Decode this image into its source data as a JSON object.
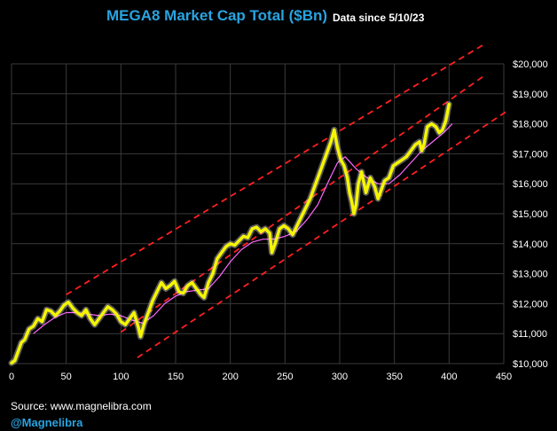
{
  "header": {
    "title": "MEGA8 Market Cap Total ($Bn)",
    "subtitle": "Data since 5/10/23"
  },
  "footer": {
    "source": "Source: www.magnelibra.com",
    "handle": "@Magnelibra"
  },
  "chart_data": {
    "type": "line",
    "xlim": [
      0,
      450
    ],
    "ylim": [
      10000,
      20000
    ],
    "x_ticks": [
      0,
      50,
      100,
      150,
      200,
      250,
      300,
      350,
      400,
      450
    ],
    "x_tick_labels": [
      "0",
      "50",
      "100",
      "150",
      "200",
      "250",
      "300",
      "350",
      "400",
      "450"
    ],
    "y_ticks": [
      10000,
      11000,
      12000,
      13000,
      14000,
      15000,
      16000,
      17000,
      18000,
      19000,
      20000
    ],
    "y_tick_labels": [
      "$10,000",
      "$11,000",
      "$12,000",
      "$13,000",
      "$14,000",
      "$15,000",
      "$16,000",
      "$17,000",
      "$18,000",
      "$19,000",
      "$20,000"
    ],
    "grid": true,
    "colors": {
      "market_cap": "#f5f500",
      "glow": "#ffffff",
      "moving_average": "#ff66ff",
      "channel": "#ff2020",
      "grid": "#3a3a3a"
    },
    "series": [
      {
        "key": "market_cap",
        "style": "thick-glow",
        "points": [
          [
            0,
            10020
          ],
          [
            3,
            10100
          ],
          [
            6,
            10400
          ],
          [
            9,
            10700
          ],
          [
            12,
            10800
          ],
          [
            16,
            11150
          ],
          [
            20,
            11250
          ],
          [
            24,
            11500
          ],
          [
            28,
            11400
          ],
          [
            32,
            11800
          ],
          [
            36,
            11750
          ],
          [
            40,
            11600
          ],
          [
            44,
            11750
          ],
          [
            48,
            11950
          ],
          [
            52,
            12050
          ],
          [
            56,
            11850
          ],
          [
            60,
            11700
          ],
          [
            64,
            11600
          ],
          [
            68,
            11800
          ],
          [
            72,
            11500
          ],
          [
            76,
            11300
          ],
          [
            80,
            11500
          ],
          [
            84,
            11700
          ],
          [
            88,
            11900
          ],
          [
            92,
            11800
          ],
          [
            96,
            11650
          ],
          [
            100,
            11400
          ],
          [
            104,
            11300
          ],
          [
            108,
            11500
          ],
          [
            112,
            11700
          ],
          [
            116,
            11200
          ],
          [
            118,
            10900
          ],
          [
            121,
            11300
          ],
          [
            125,
            11700
          ],
          [
            129,
            12100
          ],
          [
            133,
            12400
          ],
          [
            137,
            12700
          ],
          [
            141,
            12500
          ],
          [
            145,
            12600
          ],
          [
            149,
            12750
          ],
          [
            153,
            12400
          ],
          [
            157,
            12350
          ],
          [
            161,
            12600
          ],
          [
            165,
            12700
          ],
          [
            169,
            12500
          ],
          [
            173,
            12300
          ],
          [
            176,
            12200
          ],
          [
            180,
            12700
          ],
          [
            184,
            13000
          ],
          [
            188,
            13500
          ],
          [
            192,
            13700
          ],
          [
            196,
            13900
          ],
          [
            200,
            14000
          ],
          [
            204,
            13950
          ],
          [
            208,
            14100
          ],
          [
            212,
            14250
          ],
          [
            216,
            14200
          ],
          [
            220,
            14500
          ],
          [
            224,
            14550
          ],
          [
            228,
            14400
          ],
          [
            232,
            14500
          ],
          [
            236,
            14350
          ],
          [
            238,
            13700
          ],
          [
            241,
            14000
          ],
          [
            245,
            14500
          ],
          [
            249,
            14600
          ],
          [
            253,
            14500
          ],
          [
            257,
            14300
          ],
          [
            261,
            14600
          ],
          [
            265,
            14900
          ],
          [
            269,
            15200
          ],
          [
            273,
            15500
          ],
          [
            277,
            15900
          ],
          [
            281,
            16300
          ],
          [
            285,
            16700
          ],
          [
            289,
            17100
          ],
          [
            292,
            17400
          ],
          [
            295,
            17800
          ],
          [
            298,
            17200
          ],
          [
            301,
            16800
          ],
          [
            304,
            16600
          ],
          [
            307,
            16200
          ],
          [
            309,
            15700
          ],
          [
            311,
            15400
          ],
          [
            313,
            15000
          ],
          [
            315,
            15300
          ],
          [
            317,
            16000
          ],
          [
            320,
            16400
          ],
          [
            324,
            15700
          ],
          [
            328,
            16200
          ],
          [
            332,
            15900
          ],
          [
            335,
            15500
          ],
          [
            338,
            15800
          ],
          [
            341,
            16100
          ],
          [
            345,
            16200
          ],
          [
            349,
            16600
          ],
          [
            353,
            16700
          ],
          [
            357,
            16800
          ],
          [
            361,
            16900
          ],
          [
            365,
            17100
          ],
          [
            369,
            17300
          ],
          [
            373,
            17400
          ],
          [
            375,
            17100
          ],
          [
            377,
            17300
          ],
          [
            380,
            17900
          ],
          [
            384,
            18000
          ],
          [
            388,
            17900
          ],
          [
            391,
            17700
          ],
          [
            394,
            17800
          ],
          [
            397,
            18100
          ],
          [
            400,
            18650
          ]
        ]
      },
      {
        "key": "moving_average",
        "style": "thin",
        "points": [
          [
            20,
            11000
          ],
          [
            30,
            11300
          ],
          [
            40,
            11550
          ],
          [
            50,
            11700
          ],
          [
            60,
            11700
          ],
          [
            70,
            11650
          ],
          [
            80,
            11600
          ],
          [
            90,
            11650
          ],
          [
            100,
            11600
          ],
          [
            110,
            11450
          ],
          [
            120,
            11350
          ],
          [
            130,
            11600
          ],
          [
            140,
            12000
          ],
          [
            150,
            12250
          ],
          [
            160,
            12400
          ],
          [
            170,
            12450
          ],
          [
            180,
            12500
          ],
          [
            190,
            12900
          ],
          [
            200,
            13400
          ],
          [
            210,
            13800
          ],
          [
            220,
            14050
          ],
          [
            230,
            14150
          ],
          [
            240,
            14150
          ],
          [
            250,
            14250
          ],
          [
            260,
            14400
          ],
          [
            270,
            14800
          ],
          [
            280,
            15300
          ],
          [
            290,
            16100
          ],
          [
            298,
            16700
          ],
          [
            305,
            16900
          ],
          [
            315,
            16500
          ],
          [
            325,
            16200
          ],
          [
            335,
            16000
          ],
          [
            345,
            16000
          ],
          [
            355,
            16300
          ],
          [
            365,
            16700
          ],
          [
            375,
            17100
          ],
          [
            385,
            17400
          ],
          [
            395,
            17700
          ],
          [
            403,
            18000
          ]
        ]
      }
    ],
    "channel_lines": [
      {
        "name": "upper",
        "from": [
          50,
          12300
        ],
        "to": [
          432,
          20650
        ]
      },
      {
        "name": "middle",
        "from": [
          100,
          11050
        ],
        "to": [
          432,
          19600
        ]
      },
      {
        "name": "lower",
        "from": [
          115,
          10200
        ],
        "to": [
          452,
          18400
        ]
      }
    ]
  }
}
